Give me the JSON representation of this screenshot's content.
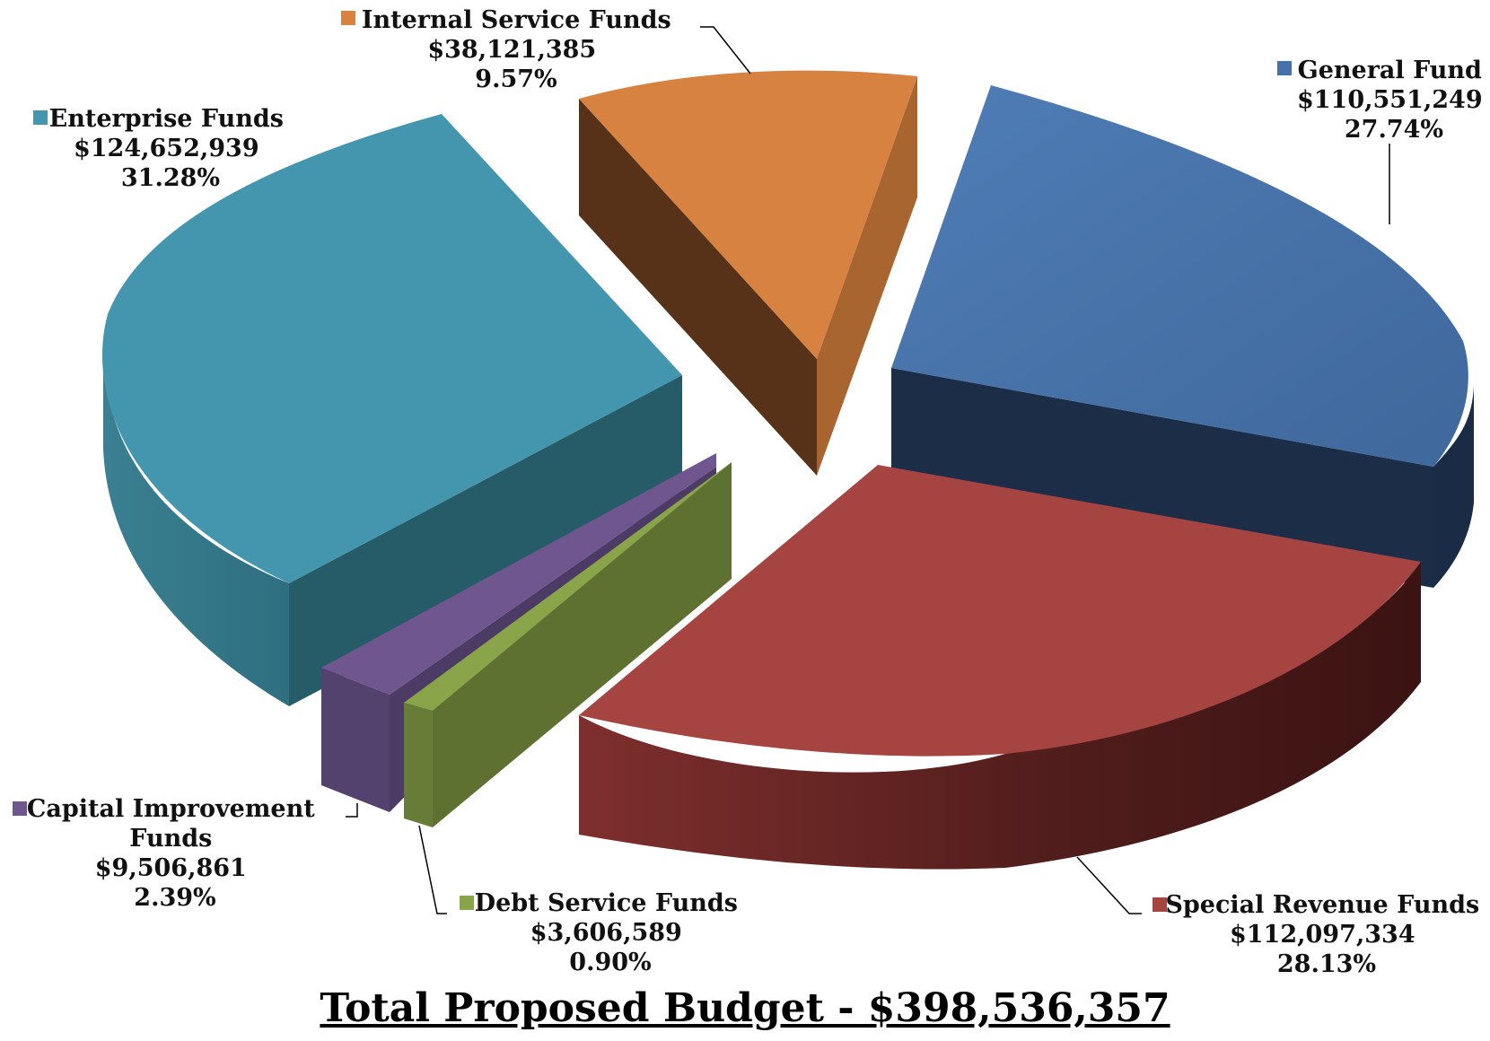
{
  "chart_data": {
    "type": "pie",
    "title": "Total Proposed Budget - $398,536,357",
    "total": 398536357,
    "slices": [
      {
        "name": "General Fund",
        "value": 110551249,
        "value_label": "$110,551,249",
        "percent_label": "27.74%",
        "color": "#4672a9",
        "side_color": "#1c2d48",
        "legend_color": "#4672a9",
        "label_lines": [
          "General Fund"
        ]
      },
      {
        "name": "Special Revenue Funds",
        "value": 112097334,
        "value_label": "$112,097,334",
        "percent_label": "28.13%",
        "color": "#a64442",
        "side_color": "#4e1c1b",
        "legend_color": "#a64442",
        "label_lines": [
          "Special Revenue Funds"
        ]
      },
      {
        "name": "Debt Service Funds",
        "value": 3606589,
        "value_label": "$3,606,589",
        "percent_label": "0.90%",
        "color": "#8aa44a",
        "side_color": "#5e7131",
        "legend_color": "#8aa44a",
        "label_lines": [
          "Debt Service Funds"
        ]
      },
      {
        "name": "Capital Improvement Funds",
        "value": 9506861,
        "value_label": "$9,506,861",
        "percent_label": "2.39%",
        "color": "#6f568f",
        "side_color": "#4c3b64",
        "legend_color": "#6f568f",
        "label_lines": [
          "Capital Improvement",
          "Funds"
        ]
      },
      {
        "name": "Enterprise Funds",
        "value": 124652939,
        "value_label": "$124,652,939",
        "percent_label": "31.28%",
        "color": "#4396ae",
        "side_color": "#265b68",
        "legend_color": "#4396ae",
        "label_lines": [
          "Enterprise Funds"
        ]
      },
      {
        "name": "Internal Service Funds",
        "value": 38121385,
        "value_label": "$38,121,385",
        "percent_label": "9.57%",
        "color": "#d78240",
        "side_color": "#573218",
        "legend_color": "#d78240",
        "label_lines": [
          "Internal Service Funds"
        ]
      }
    ],
    "legend": "labels beside slices"
  }
}
